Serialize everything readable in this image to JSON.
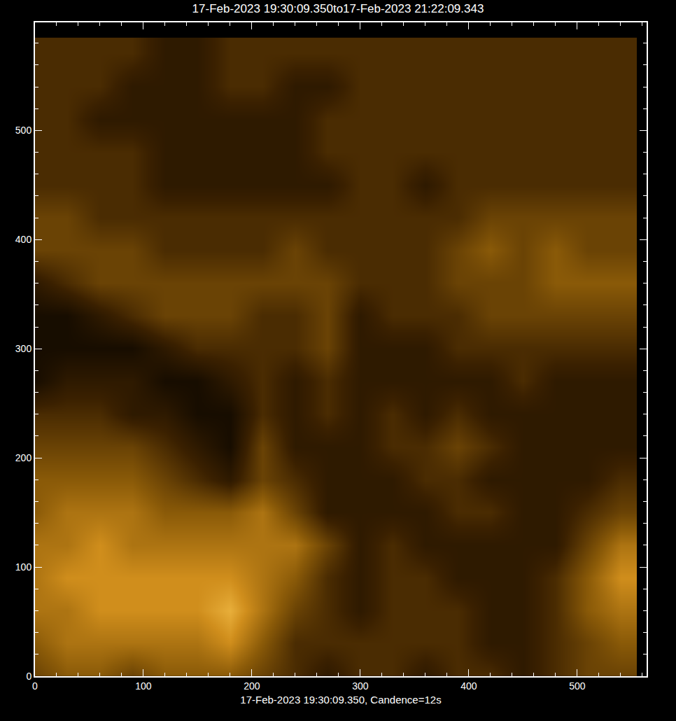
{
  "chart_data": {
    "type": "heatmap",
    "title": "17-Feb-2023 19:30:09.350to17-Feb-2023 21:22:09.343",
    "x_label": "17-Feb-2023 19:30:09.350, Candence=12s",
    "x": [
      0,
      30,
      60,
      90,
      120,
      150,
      180,
      210,
      240,
      270,
      300,
      330,
      360,
      390,
      420,
      450,
      480,
      510,
      540
    ],
    "y": [
      0,
      30,
      60,
      90,
      120,
      150,
      180,
      210,
      240,
      270,
      300,
      330,
      360,
      390,
      420,
      450,
      480,
      510,
      540,
      570
    ],
    "z": [
      [
        4,
        5,
        5,
        4,
        5,
        5,
        5,
        4,
        3,
        2,
        3,
        3,
        2,
        3,
        3,
        2,
        3,
        4,
        4
      ],
      [
        5,
        6,
        6,
        6,
        6,
        6,
        7,
        5,
        3,
        3,
        3,
        3,
        3,
        3,
        2,
        2,
        3,
        4,
        5
      ],
      [
        6,
        6,
        7,
        7,
        7,
        7,
        8,
        6,
        4,
        3,
        2,
        3,
        3,
        3,
        2,
        2,
        3,
        5,
        6
      ],
      [
        6,
        7,
        7,
        7,
        7,
        7,
        7,
        6,
        5,
        3,
        2,
        3,
        3,
        2,
        2,
        2,
        3,
        5,
        7
      ],
      [
        6,
        6,
        7,
        6,
        6,
        6,
        6,
        6,
        6,
        4,
        2,
        3,
        2,
        2,
        2,
        2,
        2,
        4,
        6
      ],
      [
        5,
        6,
        6,
        6,
        5,
        5,
        5,
        6,
        4,
        2,
        2,
        2,
        2,
        3,
        3,
        2,
        2,
        3,
        4
      ],
      [
        5,
        5,
        5,
        5,
        4,
        3,
        2,
        4,
        3,
        2,
        2,
        2,
        3,
        3,
        2,
        2,
        2,
        2,
        3
      ],
      [
        4,
        4,
        4,
        4,
        3,
        2,
        1,
        4,
        2,
        2,
        2,
        3,
        3,
        4,
        3,
        2,
        2,
        2,
        2
      ],
      [
        3,
        3,
        3,
        2,
        2,
        1,
        1,
        3,
        2,
        3,
        2,
        3,
        2,
        3,
        2,
        2,
        2,
        2,
        2
      ],
      [
        1,
        2,
        2,
        2,
        1,
        1,
        2,
        3,
        2,
        3,
        2,
        2,
        2,
        2,
        2,
        3,
        2,
        2,
        2
      ],
      [
        1,
        1,
        1,
        1,
        2,
        3,
        3,
        3,
        3,
        4,
        2,
        2,
        2,
        3,
        3,
        3,
        3,
        3,
        3
      ],
      [
        1,
        1,
        2,
        3,
        4,
        4,
        4,
        3,
        3,
        4,
        2,
        3,
        3,
        3,
        4,
        4,
        4,
        4,
        4
      ],
      [
        2,
        3,
        4,
        4,
        4,
        4,
        4,
        4,
        4,
        4,
        3,
        3,
        3,
        4,
        4,
        4,
        5,
        5,
        5
      ],
      [
        4,
        4,
        4,
        4,
        3,
        3,
        3,
        3,
        4,
        3,
        3,
        3,
        3,
        4,
        5,
        4,
        5,
        4,
        4
      ],
      [
        4,
        4,
        3,
        3,
        3,
        3,
        3,
        3,
        3,
        3,
        3,
        3,
        3,
        3,
        4,
        4,
        4,
        4,
        4
      ],
      [
        3,
        3,
        3,
        3,
        2,
        2,
        2,
        2,
        2,
        2,
        3,
        3,
        2,
        3,
        3,
        3,
        3,
        3,
        3
      ],
      [
        3,
        3,
        3,
        3,
        2,
        2,
        2,
        2,
        2,
        3,
        3,
        3,
        3,
        3,
        3,
        3,
        3,
        3,
        3
      ],
      [
        3,
        3,
        2,
        2,
        2,
        2,
        2,
        2,
        2,
        3,
        3,
        3,
        3,
        3,
        3,
        3,
        3,
        3,
        3
      ],
      [
        3,
        3,
        3,
        2,
        2,
        2,
        3,
        3,
        2,
        2,
        3,
        3,
        3,
        3,
        3,
        3,
        3,
        3,
        3
      ],
      [
        3,
        3,
        3,
        3,
        2,
        2,
        3,
        3,
        3,
        3,
        3,
        3,
        3,
        3,
        3,
        3,
        3,
        3,
        3
      ]
    ],
    "zlim": [
      0,
      10
    ],
    "xlim": [
      0,
      564
    ],
    "ylim": [
      0,
      599
    ],
    "xticks": [
      0,
      100,
      200,
      300,
      400,
      500
    ],
    "yticks": [
      0,
      100,
      200,
      300,
      400,
      500
    ]
  }
}
